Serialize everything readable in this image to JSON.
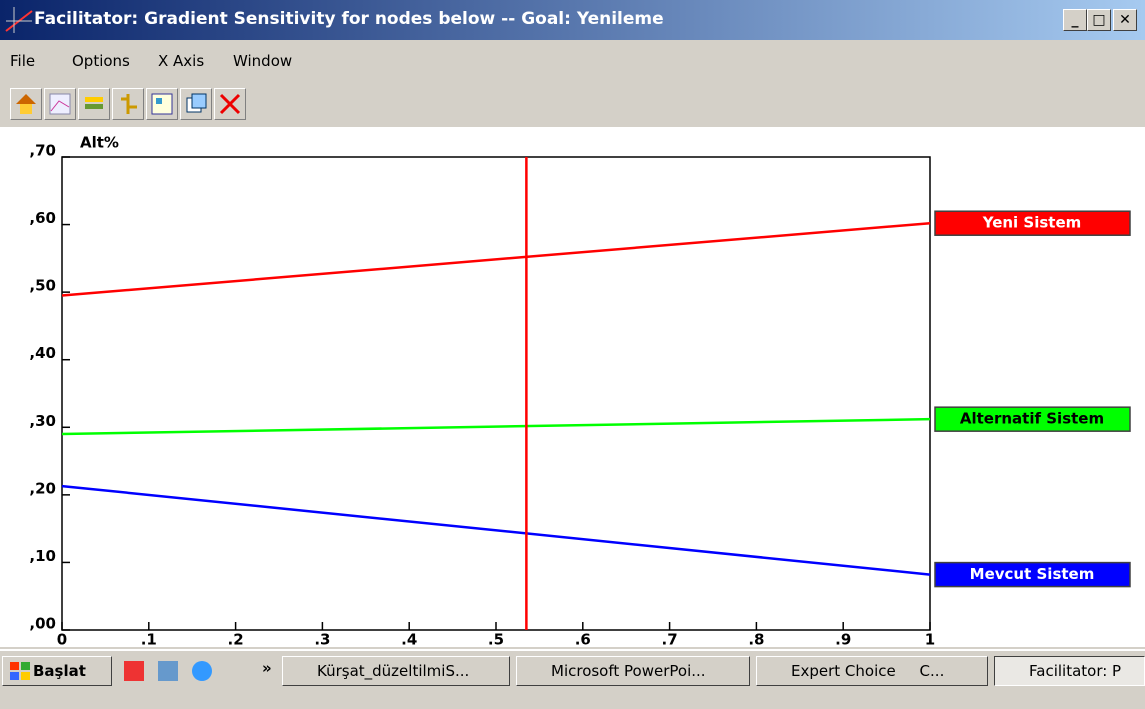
{
  "window": {
    "title": "Facilitator: Gradient Sensitivity for nodes below -- Goal: Yenileme",
    "menu": [
      "File",
      "Options",
      "X Axis",
      "Window"
    ]
  },
  "chart_data": {
    "type": "line",
    "y_label": "Alt%",
    "x": [
      0,
      1
    ],
    "series": [
      {
        "name": "Yeni Sistem",
        "color": "#ff0000",
        "values": [
          0.495,
          0.602
        ]
      },
      {
        "name": "Alternatif Sistem",
        "color": "#00ff00",
        "values": [
          0.29,
          0.312
        ]
      },
      {
        "name": "Mevcut Sistem",
        "color": "#0000ff",
        "values": [
          0.213,
          0.082
        ]
      }
    ],
    "marker_x": 0.535,
    "marker_color": "#ff0000",
    "xlim": [
      0,
      1
    ],
    "xticks": [
      0,
      {
        "value": 0.1,
        "label": ".1"
      },
      {
        "value": 0.2,
        "label": ".2"
      },
      {
        "value": 0.3,
        "label": ".3"
      },
      {
        "value": 0.4,
        "label": ".4"
      },
      {
        "value": 0.5,
        "label": ".5"
      },
      {
        "value": 0.6,
        "label": ".6"
      },
      {
        "value": 0.7,
        "label": ".7"
      },
      {
        "value": 0.8,
        "label": ".8"
      },
      {
        "value": 0.9,
        "label": ".9"
      },
      1
    ],
    "ylim": [
      0,
      0.7
    ],
    "yticks": [
      {
        "value": 0,
        "label": ",00"
      },
      {
        "value": 0.1,
        "label": ",10"
      },
      {
        "value": 0.2,
        "label": ",20"
      },
      {
        "value": 0.3,
        "label": ",30"
      },
      {
        "value": 0.4,
        "label": ",40"
      },
      {
        "value": 0.5,
        "label": ",50"
      },
      {
        "value": 0.6,
        "label": ",60"
      },
      {
        "value": 0.7,
        "label": ",70"
      }
    ]
  },
  "taskbar": {
    "start": "Başlat",
    "more": "»",
    "items": [
      "Kürşat_düzeltilmiS...",
      "Microsoft PowerPoi...",
      "Expert Choice     C...",
      "Facilitator: P"
    ]
  }
}
